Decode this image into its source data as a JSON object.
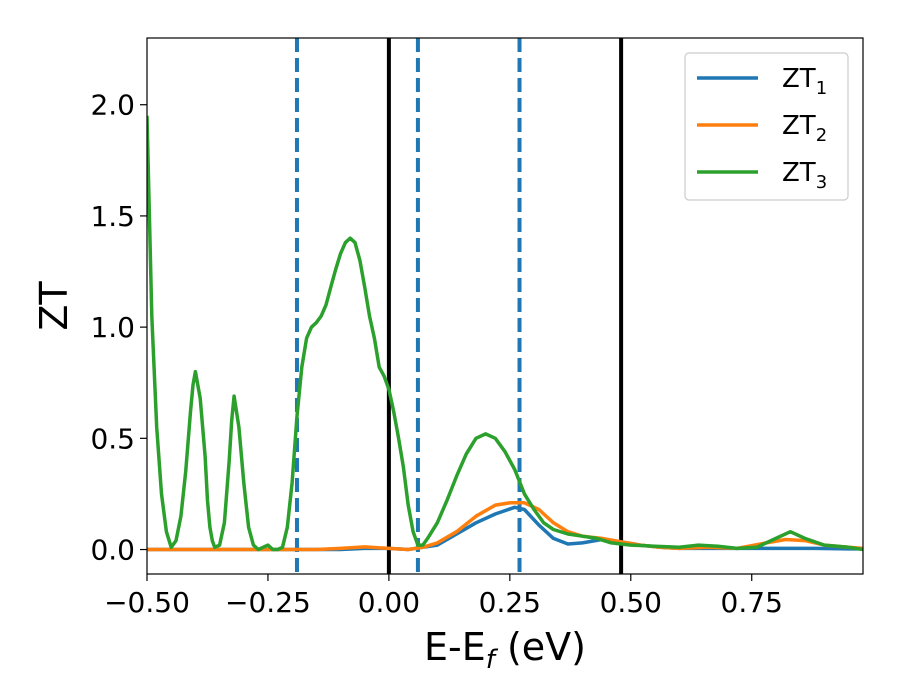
{
  "chart_data": {
    "type": "line",
    "xlabel": "E-E",
    "xlabel_sub": "f",
    "xlabel_unit": " (eV)",
    "ylabel": "ZT",
    "xlim": [
      -0.5,
      0.98
    ],
    "ylim": [
      -0.11,
      2.3
    ],
    "xticks": [
      -0.5,
      -0.25,
      0.0,
      0.25,
      0.5,
      0.75
    ],
    "xtick_labels": [
      "−0.50",
      "−0.25",
      "0.00",
      "0.25",
      "0.50",
      "0.75"
    ],
    "yticks": [
      0.0,
      0.5,
      1.0,
      1.5,
      2.0
    ],
    "ytick_labels": [
      "0.0",
      "0.5",
      "1.0",
      "1.5",
      "2.0"
    ],
    "legend_position": "top-right",
    "grid": false,
    "vlines_solid": [
      0.0,
      0.48
    ],
    "vlines_dashed": [
      -0.19,
      0.06,
      0.27
    ],
    "series": [
      {
        "name": "ZT",
        "name_sub": "1",
        "color": "#1f77b4",
        "x": [
          -0.5,
          -0.3,
          -0.2,
          -0.1,
          -0.05,
          0.0,
          0.04,
          0.07,
          0.1,
          0.14,
          0.18,
          0.22,
          0.26,
          0.28,
          0.31,
          0.34,
          0.37,
          0.4,
          0.44,
          0.48,
          0.52,
          0.56,
          0.6,
          0.66,
          0.72,
          0.8,
          0.88,
          0.95,
          0.98
        ],
        "y": [
          0.0,
          0.0,
          0.0,
          0.0,
          0.005,
          0.005,
          0.0,
          0.01,
          0.02,
          0.07,
          0.12,
          0.16,
          0.19,
          0.18,
          0.11,
          0.05,
          0.025,
          0.03,
          0.045,
          0.035,
          0.02,
          0.01,
          0.005,
          0.005,
          0.005,
          0.005,
          0.005,
          0.003,
          0.003
        ]
      },
      {
        "name": "ZT",
        "name_sub": "2",
        "color": "#ff7f0e",
        "x": [
          -0.5,
          -0.3,
          -0.2,
          -0.15,
          -0.1,
          -0.05,
          0.0,
          0.04,
          0.07,
          0.1,
          0.14,
          0.18,
          0.22,
          0.25,
          0.28,
          0.31,
          0.34,
          0.37,
          0.4,
          0.44,
          0.48,
          0.52,
          0.56,
          0.6,
          0.66,
          0.72,
          0.78,
          0.82,
          0.86,
          0.9,
          0.95,
          0.98
        ],
        "y": [
          0.0,
          0.0,
          0.0,
          0.0,
          0.005,
          0.012,
          0.005,
          0.0,
          0.01,
          0.03,
          0.08,
          0.15,
          0.2,
          0.21,
          0.21,
          0.18,
          0.12,
          0.08,
          0.06,
          0.05,
          0.035,
          0.02,
          0.01,
          0.005,
          0.01,
          0.005,
          0.03,
          0.045,
          0.04,
          0.02,
          0.01,
          0.005
        ]
      },
      {
        "name": "ZT",
        "name_sub": "3",
        "color": "#2ca02c",
        "x": [
          -0.5,
          -0.495,
          -0.49,
          -0.48,
          -0.47,
          -0.46,
          -0.45,
          -0.44,
          -0.43,
          -0.42,
          -0.41,
          -0.405,
          -0.4,
          -0.39,
          -0.38,
          -0.375,
          -0.37,
          -0.365,
          -0.36,
          -0.35,
          -0.34,
          -0.33,
          -0.325,
          -0.32,
          -0.31,
          -0.3,
          -0.29,
          -0.28,
          -0.27,
          -0.26,
          -0.25,
          -0.24,
          -0.23,
          -0.22,
          -0.21,
          -0.2,
          -0.19,
          -0.18,
          -0.17,
          -0.16,
          -0.15,
          -0.14,
          -0.13,
          -0.12,
          -0.11,
          -0.1,
          -0.09,
          -0.08,
          -0.07,
          -0.06,
          -0.05,
          -0.04,
          -0.03,
          -0.02,
          -0.01,
          0.0,
          0.01,
          0.02,
          0.03,
          0.04,
          0.05,
          0.06,
          0.07,
          0.08,
          0.1,
          0.12,
          0.14,
          0.16,
          0.18,
          0.2,
          0.22,
          0.24,
          0.26,
          0.28,
          0.3,
          0.32,
          0.34,
          0.37,
          0.4,
          0.43,
          0.46,
          0.5,
          0.55,
          0.6,
          0.64,
          0.68,
          0.72,
          0.76,
          0.8,
          0.83,
          0.86,
          0.9,
          0.95,
          0.98
        ],
        "y": [
          1.95,
          1.5,
          1.05,
          0.55,
          0.25,
          0.08,
          0.01,
          0.04,
          0.15,
          0.35,
          0.62,
          0.74,
          0.8,
          0.68,
          0.42,
          0.22,
          0.1,
          0.04,
          0.01,
          0.02,
          0.12,
          0.4,
          0.58,
          0.69,
          0.55,
          0.3,
          0.1,
          0.02,
          0.0,
          0.01,
          0.02,
          0.0,
          0.0,
          0.01,
          0.1,
          0.3,
          0.6,
          0.82,
          0.95,
          1.0,
          1.02,
          1.05,
          1.1,
          1.18,
          1.26,
          1.33,
          1.38,
          1.4,
          1.38,
          1.3,
          1.18,
          1.05,
          0.95,
          0.82,
          0.78,
          0.72,
          0.62,
          0.5,
          0.37,
          0.2,
          0.08,
          0.02,
          0.02,
          0.05,
          0.12,
          0.22,
          0.33,
          0.43,
          0.5,
          0.52,
          0.5,
          0.44,
          0.36,
          0.25,
          0.18,
          0.12,
          0.09,
          0.07,
          0.06,
          0.05,
          0.03,
          0.02,
          0.015,
          0.01,
          0.02,
          0.015,
          0.005,
          0.01,
          0.05,
          0.08,
          0.05,
          0.02,
          0.01,
          0.0
        ]
      }
    ]
  }
}
